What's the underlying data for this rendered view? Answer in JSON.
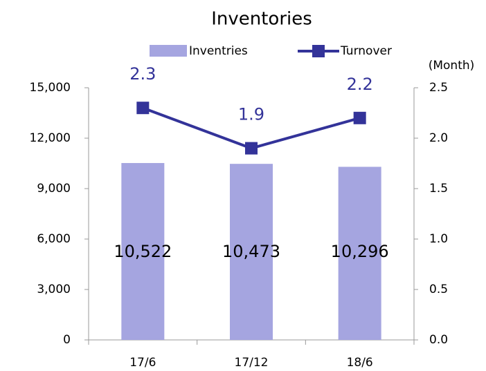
{
  "chart_data": {
    "type": "bar",
    "title": "Inventories",
    "categories": [
      "17/6",
      "17/12",
      "18/6"
    ],
    "series": [
      {
        "name": "Inventries",
        "type": "bar",
        "color": "#a5a5e0",
        "values": [
          10522,
          10473,
          10296
        ],
        "value_labels": [
          "10,522",
          "10,473",
          "10,296"
        ]
      },
      {
        "name": "Turnover",
        "type": "line",
        "axis": "y2",
        "color": "#333399",
        "values": [
          2.3,
          1.9,
          2.2
        ]
      }
    ],
    "ylim": [
      0,
      15000
    ],
    "yticks": [
      0,
      {
        "value": 3000,
        "label": "3,000"
      },
      {
        "value": 6000,
        "label": "6,000"
      },
      {
        "value": 9000,
        "label": "9,000"
      },
      {
        "value": 12000,
        "label": "12,000"
      },
      {
        "value": 15000,
        "label": "15,000"
      }
    ],
    "y2label": "(Month)",
    "y2lim": [
      0,
      2.5
    ],
    "y2ticks": [
      {
        "value": 0,
        "label": "0.0"
      },
      0.5,
      {
        "value": 1,
        "label": "1.0"
      },
      1.5,
      {
        "value": 2,
        "label": "2.0"
      },
      2.5
    ],
    "grid": false
  }
}
